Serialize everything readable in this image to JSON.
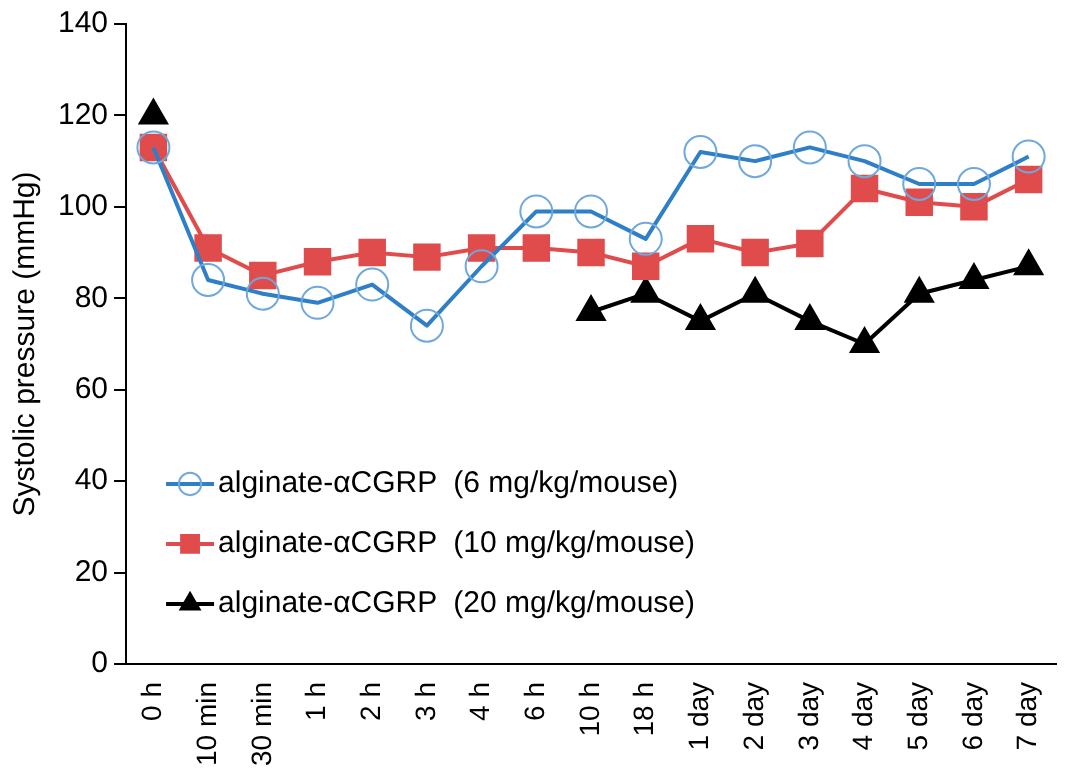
{
  "chart_data": {
    "type": "line",
    "ylabel": "Systolic pressure (mmHg)",
    "categories": [
      "0 h",
      "10 min",
      "30 min",
      "1 h",
      "2 h",
      "3 h",
      "4 h",
      "6 h",
      "10 h",
      "18 h",
      "1 day",
      "2 day",
      "3 day",
      "4 day",
      "5 day",
      "6 day",
      "7 day"
    ],
    "series": [
      {
        "name": "alginate-αCGRP  (6 mg/kg/mouse)",
        "color": "#2f7fc8",
        "marker": "circle",
        "values": [
          113,
          84,
          81,
          79,
          83,
          74,
          87,
          99,
          99,
          93,
          112,
          110,
          113,
          110,
          105,
          105,
          111
        ]
      },
      {
        "name": "alginate-αCGRP  (10 mg/kg/mouse)",
        "color": "#e04b4b",
        "marker": "square",
        "values": [
          113,
          91,
          85,
          88,
          90,
          89,
          91,
          91,
          90,
          87,
          93,
          90,
          92,
          104,
          101,
          100,
          106
        ]
      },
      {
        "name": "alginate-αCGRP  (20 mg/kg/mouse)",
        "color": "#000000",
        "marker": "triangle",
        "values": [
          120,
          null,
          null,
          null,
          null,
          null,
          null,
          null,
          77,
          81,
          75,
          81,
          75,
          70,
          81,
          84,
          87
        ]
      }
    ],
    "ylim": [
      0,
      140
    ],
    "yticks": [
      0,
      20,
      40,
      60,
      80,
      100,
      120,
      140
    ],
    "grid": false,
    "legend": "bottom left"
  }
}
